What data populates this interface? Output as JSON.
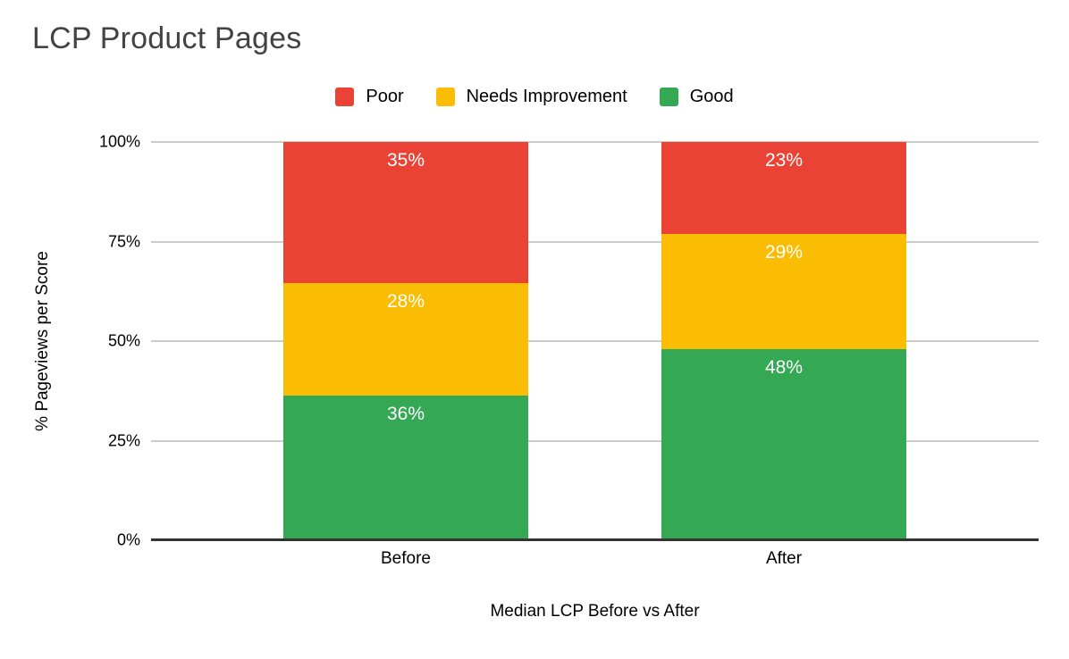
{
  "title": "LCP Product Pages",
  "colors": {
    "poor": "#ea4335",
    "needs_improvement": "#fbbc04",
    "good": "#34a853",
    "gridline": "#cccccc",
    "axis_line": "#333333",
    "title_text": "#434343",
    "label_text": "#000000",
    "data_label_text": "#ffffff",
    "background": "#ffffff"
  },
  "legend": {
    "position": "top",
    "items": [
      {
        "label": "Poor",
        "color": "#ea4335"
      },
      {
        "label": "Needs Improvement",
        "color": "#fbbc04"
      },
      {
        "label": "Good",
        "color": "#34a853"
      }
    ]
  },
  "chart_data": {
    "type": "bar",
    "stacked": true,
    "percent_stacked": true,
    "title": "LCP Product Pages",
    "xlabel": "Median LCP Before vs After",
    "ylabel": "% Pageviews per Score",
    "categories": [
      "Before",
      "After"
    ],
    "series": [
      {
        "name": "Poor",
        "color": "#ea4335",
        "values": [
          35,
          23
        ],
        "labels": [
          "35%",
          "23%"
        ]
      },
      {
        "name": "Needs Improvement",
        "color": "#fbbc04",
        "values": [
          28,
          29
        ],
        "labels": [
          "28%",
          "29%"
        ]
      },
      {
        "name": "Good",
        "color": "#34a853",
        "values": [
          36,
          48
        ],
        "labels": [
          "36%",
          "48%"
        ]
      }
    ],
    "y_ticks": [
      "100%",
      "75%",
      "50%",
      "25%",
      "0%"
    ],
    "ylim": [
      0,
      100
    ],
    "grid": true,
    "legend_position": "top",
    "data_label_suffix": "%"
  }
}
